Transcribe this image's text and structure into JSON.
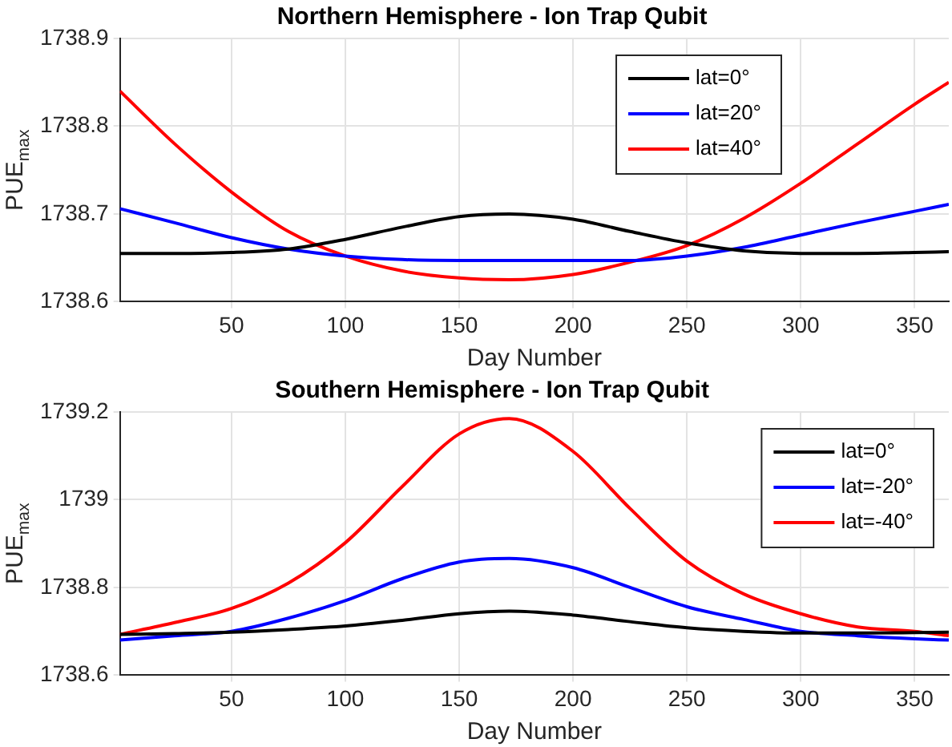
{
  "chart_data": [
    {
      "type": "line",
      "title": "Northern Hemisphere - Ion Trap Qubit",
      "xlabel": "Day Number",
      "ylabel": "PUE$_{max}$",
      "x": [
        1,
        25,
        50,
        75,
        100,
        125,
        150,
        172,
        200,
        225,
        250,
        275,
        300,
        325,
        350,
        365
      ],
      "series": [
        {
          "name": "lat=0°",
          "color": "#000000",
          "values": [
            1738.655,
            1738.655,
            1738.656,
            1738.66,
            1738.671,
            1738.685,
            1738.697,
            1738.7,
            1738.694,
            1738.68,
            1738.667,
            1738.658,
            1738.655,
            1738.655,
            1738.656,
            1738.657
          ]
        },
        {
          "name": "lat=20°",
          "color": "#0000ff",
          "values": [
            1738.706,
            1738.69,
            1738.673,
            1738.66,
            1738.652,
            1738.648,
            1738.647,
            1738.647,
            1738.647,
            1738.647,
            1738.652,
            1738.662,
            1738.676,
            1738.69,
            1738.703,
            1738.711
          ]
        },
        {
          "name": "lat=40°",
          "color": "#ff0000",
          "values": [
            1738.84,
            1738.78,
            1738.725,
            1738.68,
            1738.652,
            1738.635,
            1738.627,
            1738.625,
            1738.631,
            1738.645,
            1738.664,
            1738.695,
            1738.735,
            1738.78,
            1738.825,
            1738.85
          ]
        }
      ],
      "xlim": [
        1,
        365
      ],
      "xticks": [
        50,
        100,
        150,
        200,
        250,
        300,
        350
      ],
      "ylim": [
        1738.6,
        1738.9
      ],
      "yticks": [
        1738.6,
        1738.7,
        1738.8,
        1738.9
      ],
      "grid": true,
      "legend": "top right",
      "marker": "none",
      "line_style": "solid"
    },
    {
      "type": "line",
      "title": "Southern Hemisphere - Ion Trap Qubit",
      "xlabel": "Day Number",
      "ylabel": "PUE$_{max}$",
      "x": [
        1,
        25,
        50,
        75,
        100,
        125,
        150,
        172,
        200,
        225,
        250,
        275,
        300,
        325,
        350,
        365
      ],
      "series": [
        {
          "name": "lat=0°",
          "color": "#000000",
          "values": [
            1738.693,
            1738.695,
            1738.698,
            1738.704,
            1738.712,
            1738.725,
            1738.74,
            1738.746,
            1738.737,
            1738.722,
            1738.708,
            1738.7,
            1738.696,
            1738.696,
            1738.697,
            1738.698
          ]
        },
        {
          "name": "lat=-20°",
          "color": "#0000ff",
          "values": [
            1738.68,
            1738.69,
            1738.7,
            1738.73,
            1738.77,
            1738.82,
            1738.858,
            1738.866,
            1738.845,
            1738.8,
            1738.756,
            1738.727,
            1738.7,
            1738.69,
            1738.683,
            1738.68
          ]
        },
        {
          "name": "lat=-40°",
          "color": "#ff0000",
          "values": [
            1738.693,
            1738.72,
            1738.752,
            1738.81,
            1738.902,
            1739.03,
            1739.15,
            1739.185,
            1739.11,
            1738.98,
            1738.86,
            1738.785,
            1738.74,
            1738.71,
            1738.7,
            1738.69
          ]
        }
      ],
      "xlim": [
        1,
        365
      ],
      "xticks": [
        50,
        100,
        150,
        200,
        250,
        300,
        350
      ],
      "ylim": [
        1738.6,
        1739.2
      ],
      "yticks": [
        1738.6,
        1738.8,
        1739,
        1739.2
      ],
      "grid": true,
      "legend": "top right",
      "marker": "none",
      "line_style": "solid"
    }
  ]
}
